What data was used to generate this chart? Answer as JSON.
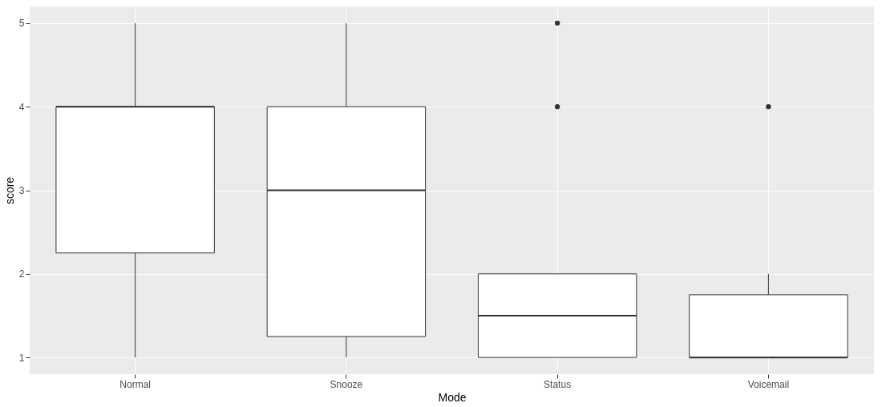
{
  "chart_data": {
    "type": "box",
    "xlabel": "Mode",
    "ylabel": "score",
    "categories": [
      "Normal",
      "Snooze",
      "Status",
      "Voicemail"
    ],
    "boxes": [
      {
        "low": 1,
        "q1": 2.25,
        "median": 4,
        "q3": 4,
        "high": 5
      },
      {
        "low": 1,
        "q1": 1.25,
        "median": 3,
        "q3": 4,
        "high": 5
      },
      {
        "low": 1,
        "q1": 1,
        "median": 1.5,
        "q3": 2,
        "high": 2,
        "outliers": [
          4,
          5
        ]
      },
      {
        "low": 1,
        "q1": 1,
        "median": 1,
        "q3": 1.75,
        "high": 2,
        "outliers": [
          4
        ]
      }
    ],
    "ylim": [
      0.8,
      5.2
    ],
    "yticks": [
      1,
      2,
      3,
      4,
      5
    ],
    "grid": true
  }
}
